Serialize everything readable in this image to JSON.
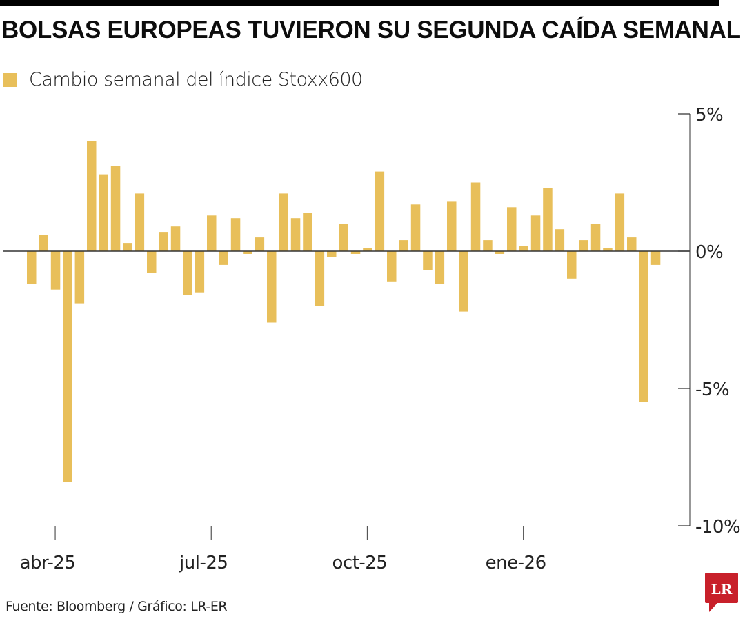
{
  "header": {
    "title": "BOLSAS EUROPEAS TUVIERON SU SEGUNDA CAÍDA SEMANAL"
  },
  "legend": {
    "label": "Cambio semanal del índice Stoxx600",
    "color": "#E8BF5A"
  },
  "footer": {
    "source": "Fuente: Bloomberg / Gráfico: LR-ER",
    "logo_text": "LR",
    "logo_color": "#C8202A"
  },
  "chart_data": {
    "type": "bar",
    "title": "BOLSAS EUROPEAS TUVIERON SU SEGUNDA CAÍDA SEMANAL",
    "xlabel": "",
    "ylabel": "",
    "ylim": [
      -10,
      5
    ],
    "y_ticks": [
      5,
      0,
      -5,
      -10
    ],
    "y_tick_labels": [
      "5%",
      "0%",
      "-5%",
      "-10%"
    ],
    "y_axis_side": "right",
    "x_tick_labels": [
      {
        "label": "abr-25",
        "index": 2
      },
      {
        "label": "jul-25",
        "index": 15
      },
      {
        "label": "oct-25",
        "index": 28
      },
      {
        "label": "ene-26",
        "index": 41
      }
    ],
    "grid": false,
    "legend_position": "top-left",
    "series": [
      {
        "name": "Cambio semanal del índice Stoxx600",
        "color": "#E8BF5A",
        "values": [
          -1.2,
          0.6,
          -1.4,
          -8.4,
          -1.9,
          4.0,
          2.8,
          3.1,
          0.3,
          2.1,
          -0.8,
          0.7,
          0.9,
          -1.6,
          -1.5,
          1.3,
          -0.5,
          1.2,
          -0.1,
          0.5,
          -2.6,
          2.1,
          1.2,
          1.4,
          -2.0,
          -0.2,
          1.0,
          -0.1,
          0.1,
          2.9,
          -1.1,
          0.4,
          1.7,
          -0.7,
          -1.2,
          1.8,
          -2.2,
          2.5,
          0.4,
          -0.1,
          1.6,
          0.2,
          1.3,
          2.3,
          0.8,
          -1.0,
          0.4,
          1.0,
          0.1,
          2.1,
          0.5,
          -5.5,
          -0.5
        ]
      }
    ]
  }
}
